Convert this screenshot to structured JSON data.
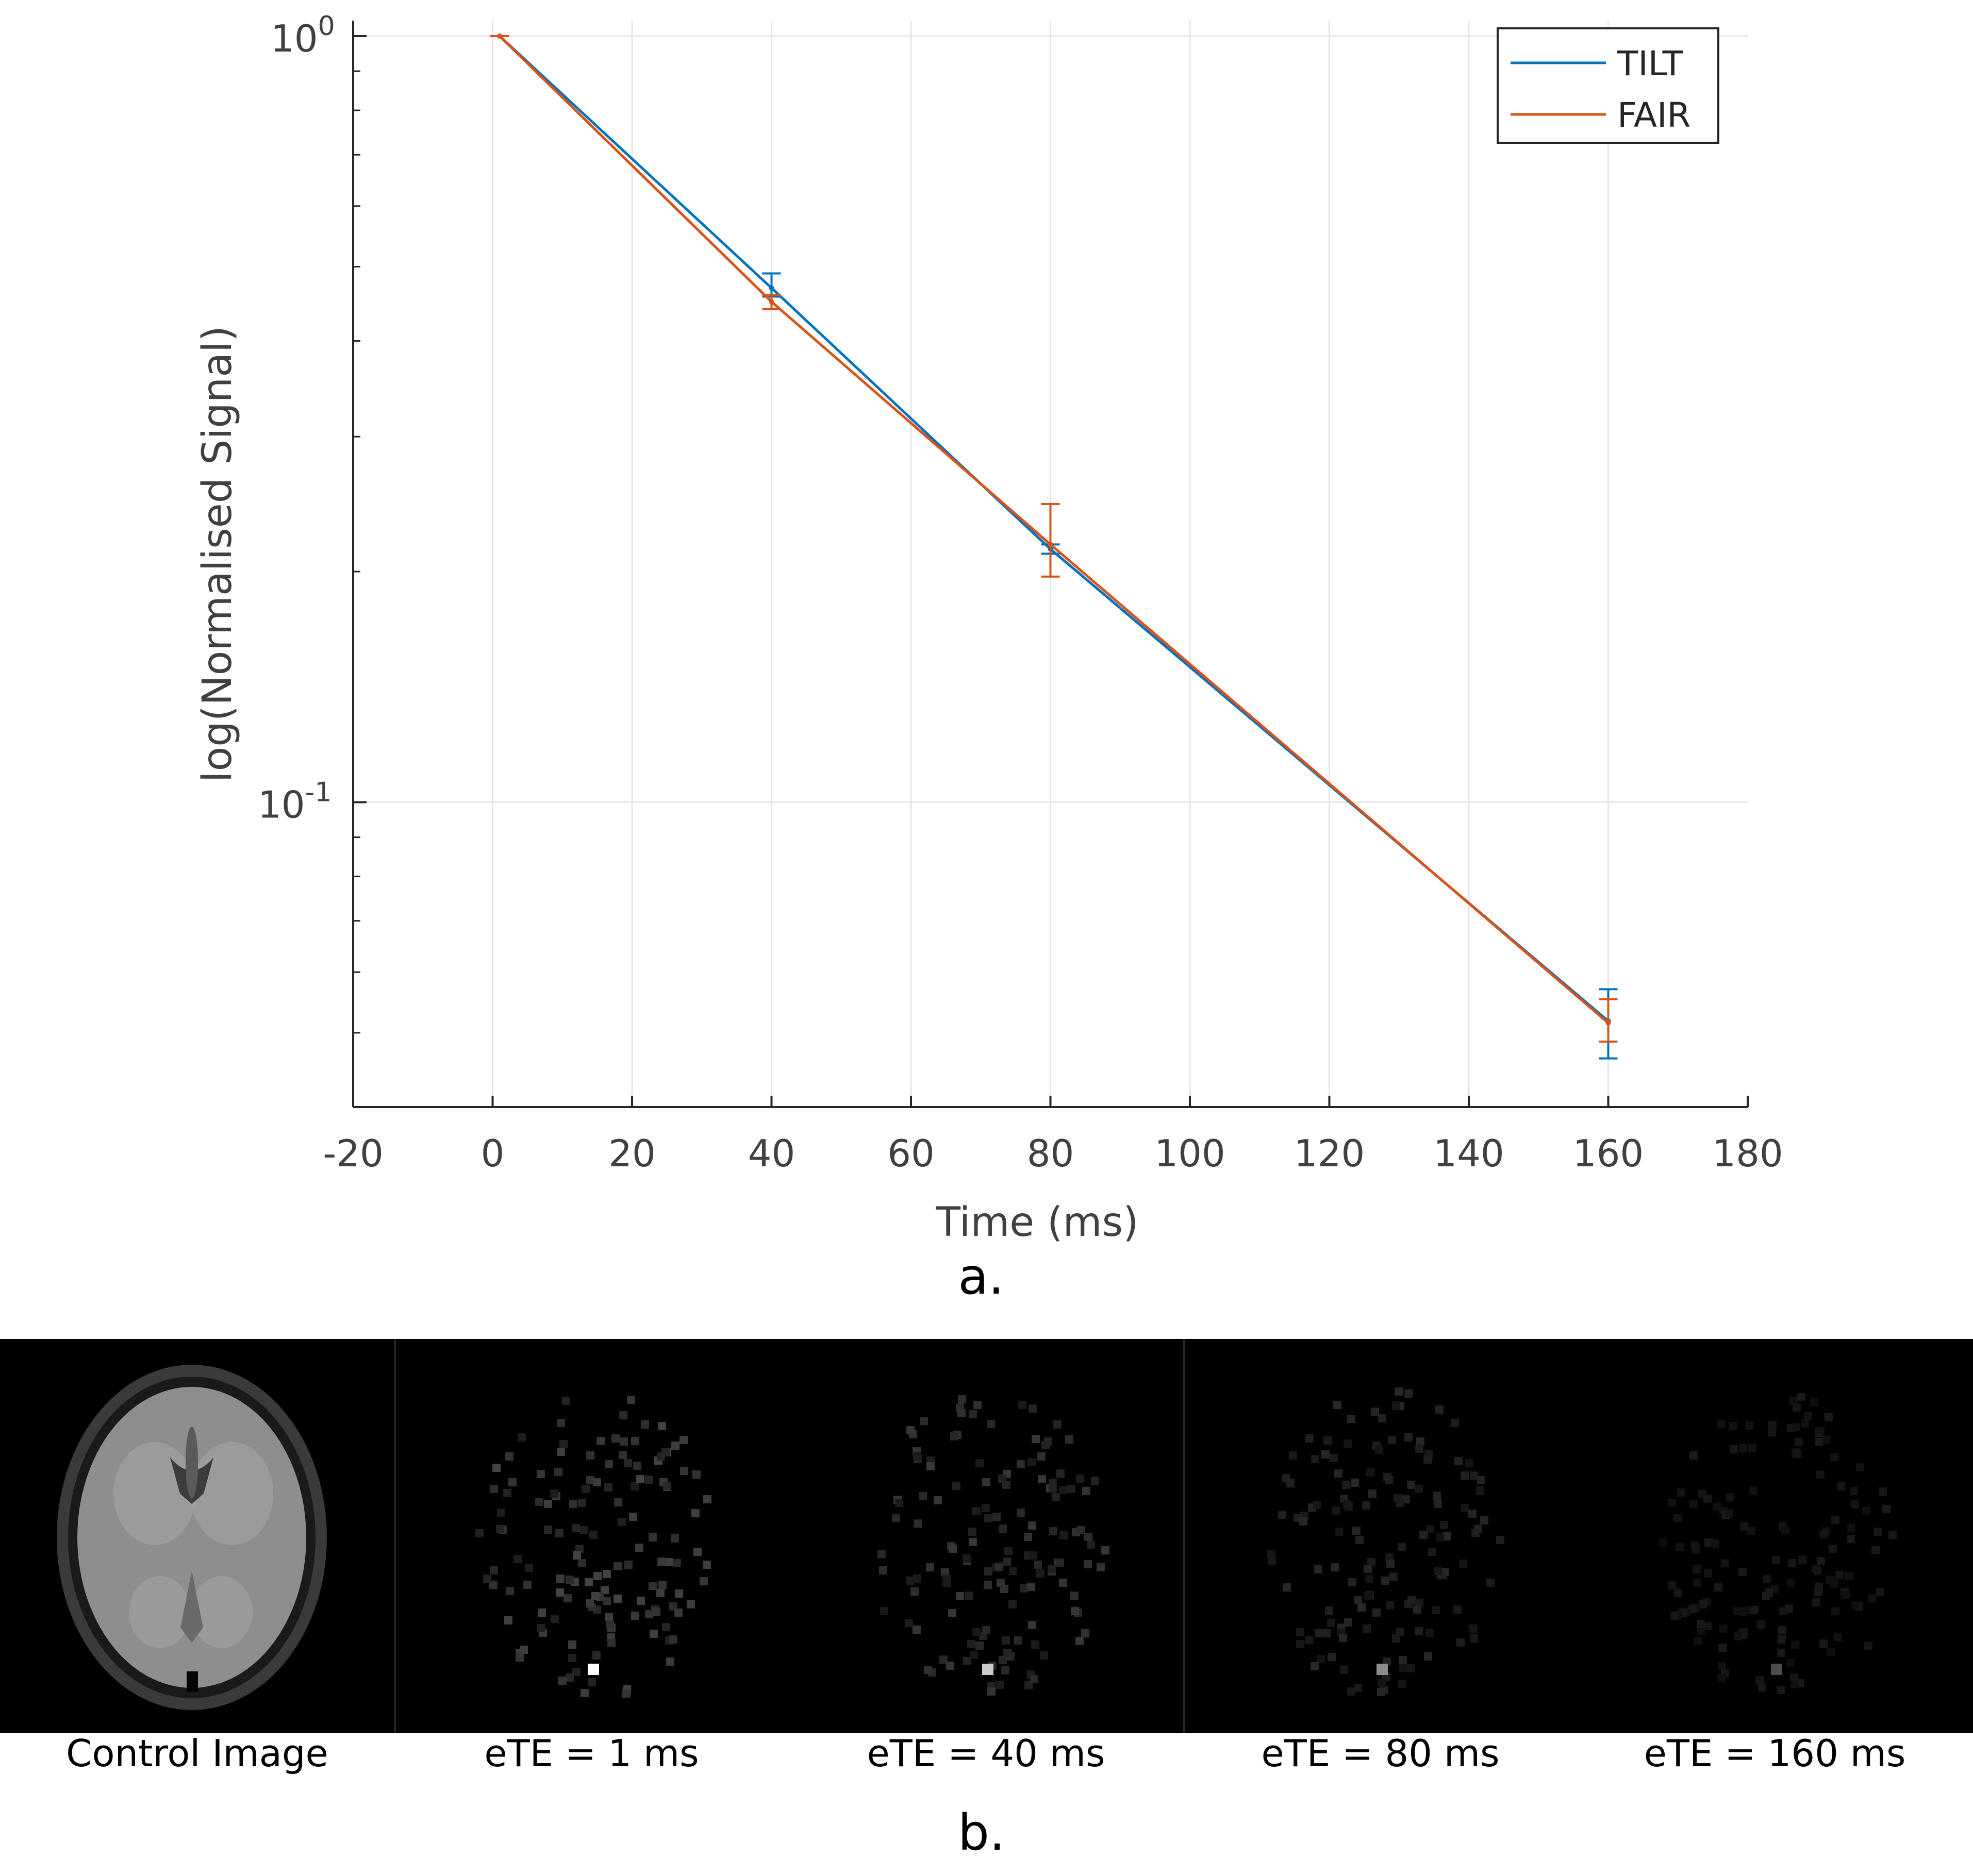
{
  "chart_data": {
    "type": "line",
    "xlabel": "Time (ms)",
    "ylabel": "log(Normalised Signal)",
    "xlim": [
      -20,
      180
    ],
    "xticks": [
      "-20",
      "0",
      "20",
      "40",
      "60",
      "80",
      "100",
      "120",
      "140",
      "160",
      "180"
    ],
    "ylim": [
      0.04,
      1.0
    ],
    "yscale": "log",
    "yticks": [
      {
        "base": "10",
        "exp": "0"
      },
      {
        "base": "10",
        "exp": "-1"
      }
    ],
    "grid": true,
    "legend_position": "top-right",
    "x": [
      1,
      40,
      80,
      160
    ],
    "series": [
      {
        "name": "TILT",
        "color": "#0072BD",
        "values": [
          1.0,
          0.469,
          0.214,
          0.0518
        ],
        "err_low": [
          0.0,
          0.012,
          0.003,
          0.0055
        ],
        "err_high": [
          0.0,
          0.021,
          0.003,
          0.0052
        ]
      },
      {
        "name": "FAIR",
        "color": "#D95319",
        "values": [
          1.0,
          0.45,
          0.217,
          0.0515
        ],
        "err_low": [
          0.0,
          0.01,
          0.02,
          0.0028
        ],
        "err_high": [
          0.0,
          0.009,
          0.028,
          0.0038
        ]
      }
    ]
  },
  "labels": {
    "panel_a": "a.",
    "panel_b": "b."
  },
  "images": [
    {
      "caption": "Control Image",
      "kind": "control"
    },
    {
      "caption": "eTE = 1 ms",
      "kind": "perfusion",
      "intensity": 1.0
    },
    {
      "caption": "eTE = 40 ms",
      "kind": "perfusion",
      "intensity": 0.8
    },
    {
      "caption": "eTE = 80 ms",
      "kind": "perfusion",
      "intensity": 0.55
    },
    {
      "caption": "eTE = 160 ms",
      "kind": "perfusion",
      "intensity": 0.3
    }
  ]
}
